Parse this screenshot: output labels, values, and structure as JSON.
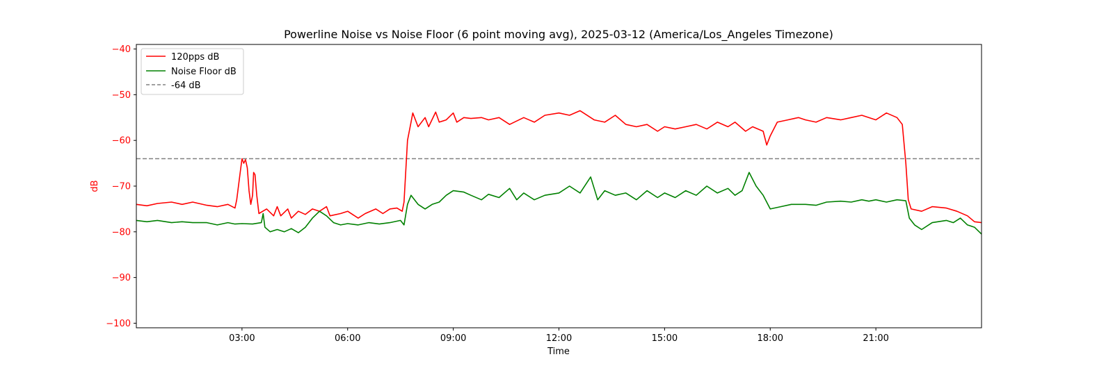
{
  "chart_data": {
    "type": "line",
    "title": "Powerline Noise vs Noise Floor (6 point moving avg), 2025-03-12 (America/Los_Angeles Timezone)",
    "xlabel": "Time",
    "ylabel": "dB",
    "ylim": [
      -101,
      -39
    ],
    "xlim_hours": [
      0,
      24
    ],
    "x_ticks": [
      {
        "hour": 3,
        "label": "03:00"
      },
      {
        "hour": 6,
        "label": "06:00"
      },
      {
        "hour": 9,
        "label": "09:00"
      },
      {
        "hour": 12,
        "label": "12:00"
      },
      {
        "hour": 15,
        "label": "15:00"
      },
      {
        "hour": 18,
        "label": "18:00"
      },
      {
        "hour": 21,
        "label": "21:00"
      }
    ],
    "y_ticks": [
      -40,
      -50,
      -60,
      -70,
      -80,
      -90,
      -100
    ],
    "y_tick_labels": [
      "−40",
      "−50",
      "−60",
      "−70",
      "−80",
      "−90",
      "−100"
    ],
    "y_tick_color": "#ff0000",
    "ylabel_color": "#ff0000",
    "legend_position": "top-left",
    "grid": false,
    "reference_line": {
      "name": "-64 dB",
      "value": -64,
      "color": "#808080",
      "style": "dashed"
    },
    "series": [
      {
        "name": "120pps dB",
        "color": "#ff0000",
        "points": [
          [
            0.0,
            -74
          ],
          [
            0.3,
            -74.3
          ],
          [
            0.6,
            -73.8
          ],
          [
            1.0,
            -73.5
          ],
          [
            1.3,
            -74
          ],
          [
            1.6,
            -73.5
          ],
          [
            2.0,
            -74.2
          ],
          [
            2.3,
            -74.5
          ],
          [
            2.6,
            -74
          ],
          [
            2.8,
            -74.8
          ],
          [
            2.85,
            -73
          ],
          [
            2.95,
            -67
          ],
          [
            3.0,
            -64
          ],
          [
            3.05,
            -65
          ],
          [
            3.1,
            -64.2
          ],
          [
            3.15,
            -66
          ],
          [
            3.2,
            -71
          ],
          [
            3.25,
            -74
          ],
          [
            3.3,
            -72
          ],
          [
            3.33,
            -67
          ],
          [
            3.37,
            -67.5
          ],
          [
            3.42,
            -72
          ],
          [
            3.48,
            -76
          ],
          [
            3.7,
            -75
          ],
          [
            3.9,
            -76.5
          ],
          [
            4.0,
            -74.5
          ],
          [
            4.1,
            -76.5
          ],
          [
            4.3,
            -75
          ],
          [
            4.4,
            -77
          ],
          [
            4.6,
            -75.5
          ],
          [
            4.8,
            -76.2
          ],
          [
            5.0,
            -75
          ],
          [
            5.2,
            -75.5
          ],
          [
            5.4,
            -74.5
          ],
          [
            5.5,
            -76.5
          ],
          [
            5.8,
            -76
          ],
          [
            6.0,
            -75.5
          ],
          [
            6.3,
            -77
          ],
          [
            6.5,
            -76
          ],
          [
            6.8,
            -75
          ],
          [
            7.0,
            -76
          ],
          [
            7.2,
            -75
          ],
          [
            7.4,
            -74.8
          ],
          [
            7.55,
            -75.5
          ],
          [
            7.6,
            -73.5
          ],
          [
            7.7,
            -60
          ],
          [
            7.8,
            -56
          ],
          [
            7.85,
            -54
          ],
          [
            8.0,
            -57
          ],
          [
            8.2,
            -55
          ],
          [
            8.3,
            -57
          ],
          [
            8.5,
            -53.8
          ],
          [
            8.6,
            -56
          ],
          [
            8.8,
            -55.5
          ],
          [
            9.0,
            -54
          ],
          [
            9.1,
            -56
          ],
          [
            9.3,
            -55
          ],
          [
            9.5,
            -55.2
          ],
          [
            9.8,
            -55
          ],
          [
            10.0,
            -55.5
          ],
          [
            10.3,
            -55
          ],
          [
            10.6,
            -56.5
          ],
          [
            11.0,
            -55
          ],
          [
            11.3,
            -56
          ],
          [
            11.6,
            -54.5
          ],
          [
            12.0,
            -54
          ],
          [
            12.3,
            -54.5
          ],
          [
            12.6,
            -53.5
          ],
          [
            13.0,
            -55.5
          ],
          [
            13.3,
            -56
          ],
          [
            13.6,
            -54.5
          ],
          [
            13.9,
            -56.5
          ],
          [
            14.2,
            -57
          ],
          [
            14.5,
            -56.5
          ],
          [
            14.8,
            -58
          ],
          [
            15.0,
            -57
          ],
          [
            15.3,
            -57.5
          ],
          [
            15.6,
            -57
          ],
          [
            15.9,
            -56.5
          ],
          [
            16.2,
            -57.5
          ],
          [
            16.5,
            -56
          ],
          [
            16.8,
            -57
          ],
          [
            17.0,
            -56
          ],
          [
            17.3,
            -58
          ],
          [
            17.5,
            -57
          ],
          [
            17.8,
            -58
          ],
          [
            17.9,
            -61
          ],
          [
            18.0,
            -59
          ],
          [
            18.2,
            -56
          ],
          [
            18.5,
            -55.5
          ],
          [
            18.8,
            -55
          ],
          [
            19.0,
            -55.5
          ],
          [
            19.3,
            -56
          ],
          [
            19.6,
            -55
          ],
          [
            20.0,
            -55.5
          ],
          [
            20.3,
            -55
          ],
          [
            20.6,
            -54.5
          ],
          [
            21.0,
            -55.5
          ],
          [
            21.3,
            -54
          ],
          [
            21.6,
            -55
          ],
          [
            21.75,
            -56.5
          ],
          [
            21.85,
            -65
          ],
          [
            21.92,
            -73
          ],
          [
            22.0,
            -75
          ],
          [
            22.3,
            -75.5
          ],
          [
            22.6,
            -74.5
          ],
          [
            23.0,
            -74.8
          ],
          [
            23.3,
            -75.5
          ],
          [
            23.6,
            -76.5
          ],
          [
            23.8,
            -77.8
          ],
          [
            24.0,
            -78
          ]
        ]
      },
      {
        "name": "Noise Floor dB",
        "color": "#008000",
        "points": [
          [
            0.0,
            -77.5
          ],
          [
            0.3,
            -77.8
          ],
          [
            0.6,
            -77.5
          ],
          [
            1.0,
            -78
          ],
          [
            1.3,
            -77.8
          ],
          [
            1.6,
            -78
          ],
          [
            2.0,
            -78
          ],
          [
            2.3,
            -78.5
          ],
          [
            2.6,
            -78
          ],
          [
            2.8,
            -78.3
          ],
          [
            3.0,
            -78.2
          ],
          [
            3.3,
            -78.3
          ],
          [
            3.55,
            -78
          ],
          [
            3.6,
            -76
          ],
          [
            3.65,
            -79
          ],
          [
            3.8,
            -80
          ],
          [
            4.0,
            -79.5
          ],
          [
            4.2,
            -80
          ],
          [
            4.4,
            -79.3
          ],
          [
            4.6,
            -80.2
          ],
          [
            4.8,
            -79
          ],
          [
            5.0,
            -77
          ],
          [
            5.2,
            -75.5
          ],
          [
            5.4,
            -76.5
          ],
          [
            5.6,
            -78
          ],
          [
            5.8,
            -78.5
          ],
          [
            6.0,
            -78.2
          ],
          [
            6.3,
            -78.5
          ],
          [
            6.6,
            -78
          ],
          [
            6.9,
            -78.3
          ],
          [
            7.2,
            -78
          ],
          [
            7.5,
            -77.5
          ],
          [
            7.6,
            -78.5
          ],
          [
            7.7,
            -74
          ],
          [
            7.8,
            -72
          ],
          [
            8.0,
            -74
          ],
          [
            8.2,
            -75
          ],
          [
            8.4,
            -74
          ],
          [
            8.6,
            -73.5
          ],
          [
            8.8,
            -72
          ],
          [
            9.0,
            -71
          ],
          [
            9.3,
            -71.3
          ],
          [
            9.5,
            -72
          ],
          [
            9.8,
            -73
          ],
          [
            10.0,
            -71.8
          ],
          [
            10.3,
            -72.5
          ],
          [
            10.6,
            -70.5
          ],
          [
            10.8,
            -73
          ],
          [
            11.0,
            -71.5
          ],
          [
            11.3,
            -73
          ],
          [
            11.6,
            -72
          ],
          [
            12.0,
            -71.5
          ],
          [
            12.3,
            -70
          ],
          [
            12.6,
            -71.5
          ],
          [
            12.9,
            -68
          ],
          [
            13.1,
            -73
          ],
          [
            13.3,
            -71
          ],
          [
            13.6,
            -72
          ],
          [
            13.9,
            -71.5
          ],
          [
            14.2,
            -73
          ],
          [
            14.5,
            -71
          ],
          [
            14.8,
            -72.5
          ],
          [
            15.0,
            -71.5
          ],
          [
            15.3,
            -72.5
          ],
          [
            15.6,
            -71
          ],
          [
            15.9,
            -72
          ],
          [
            16.2,
            -70
          ],
          [
            16.5,
            -71.5
          ],
          [
            16.8,
            -70.5
          ],
          [
            17.0,
            -72
          ],
          [
            17.2,
            -71
          ],
          [
            17.4,
            -67
          ],
          [
            17.6,
            -70
          ],
          [
            17.8,
            -72
          ],
          [
            18.0,
            -75
          ],
          [
            18.3,
            -74.5
          ],
          [
            18.6,
            -74
          ],
          [
            19.0,
            -74
          ],
          [
            19.3,
            -74.2
          ],
          [
            19.6,
            -73.5
          ],
          [
            20.0,
            -73.3
          ],
          [
            20.3,
            -73.5
          ],
          [
            20.6,
            -73
          ],
          [
            20.8,
            -73.3
          ],
          [
            21.0,
            -73
          ],
          [
            21.3,
            -73.5
          ],
          [
            21.6,
            -73
          ],
          [
            21.85,
            -73.2
          ],
          [
            21.95,
            -77
          ],
          [
            22.1,
            -78.5
          ],
          [
            22.3,
            -79.5
          ],
          [
            22.6,
            -78
          ],
          [
            23.0,
            -77.5
          ],
          [
            23.2,
            -78
          ],
          [
            23.4,
            -77
          ],
          [
            23.6,
            -78.5
          ],
          [
            23.8,
            -79
          ],
          [
            24.0,
            -80.5
          ]
        ]
      }
    ]
  }
}
